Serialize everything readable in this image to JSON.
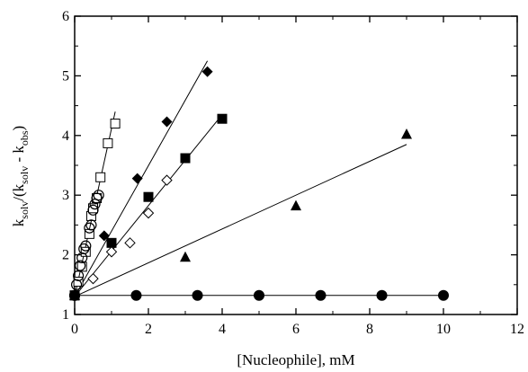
{
  "chart_data": {
    "type": "scatter",
    "title": "",
    "xlabel": "[Nucleophile], mM",
    "ylabel": {
      "base1": "k",
      "sub1": "solv",
      "middle": "/(k",
      "sub2": "solv",
      "dash": " - k",
      "sub3": "obs",
      "tail": ")"
    },
    "xlim": [
      0,
      12
    ],
    "ylim": [
      1,
      6
    ],
    "xticks": [
      0,
      2,
      4,
      6,
      8,
      10,
      12
    ],
    "yticks": [
      1,
      2,
      3,
      4,
      5,
      6
    ],
    "grid": false,
    "legend": "none",
    "series": [
      {
        "marker": "open-square",
        "points": [
          [
            0.0,
            1.32
          ],
          [
            0.1,
            1.55
          ],
          [
            0.2,
            1.8
          ],
          [
            0.3,
            2.05
          ],
          [
            0.4,
            2.35
          ],
          [
            0.45,
            2.65
          ],
          [
            0.5,
            2.78
          ],
          [
            0.6,
            2.95
          ],
          [
            0.7,
            3.3
          ],
          [
            0.9,
            3.87
          ],
          [
            1.1,
            4.2
          ]
        ],
        "fit": [
          [
            0.0,
            1.3
          ],
          [
            1.1,
            4.4
          ]
        ]
      },
      {
        "marker": "open-circle",
        "points": [
          [
            0.0,
            1.32
          ],
          [
            0.05,
            1.5
          ],
          [
            0.1,
            1.65
          ],
          [
            0.15,
            1.82
          ],
          [
            0.2,
            1.95
          ],
          [
            0.25,
            2.1
          ],
          [
            0.3,
            2.15
          ],
          [
            0.4,
            2.45
          ],
          [
            0.45,
            2.5
          ],
          [
            0.5,
            2.75
          ],
          [
            0.55,
            2.85
          ],
          [
            0.6,
            2.95
          ],
          [
            0.65,
            3.0
          ]
        ],
        "fit": null
      },
      {
        "marker": "filled-diamond",
        "points": [
          [
            0.0,
            1.32
          ],
          [
            0.8,
            2.32
          ],
          [
            1.7,
            3.28
          ],
          [
            2.5,
            4.23
          ],
          [
            3.6,
            5.07
          ]
        ],
        "fit": [
          [
            0.0,
            1.3
          ],
          [
            3.6,
            5.25
          ]
        ]
      },
      {
        "marker": "filled-square",
        "points": [
          [
            0.0,
            1.32
          ],
          [
            1.0,
            2.2
          ],
          [
            2.0,
            2.97
          ],
          [
            3.0,
            3.62
          ],
          [
            4.0,
            4.28
          ]
        ],
        "fit": [
          [
            0.0,
            1.3
          ],
          [
            4.0,
            4.35
          ]
        ]
      },
      {
        "marker": "open-diamond",
        "points": [
          [
            0.0,
            1.32
          ],
          [
            0.5,
            1.6
          ],
          [
            1.0,
            2.05
          ],
          [
            1.5,
            2.2
          ],
          [
            2.0,
            2.7
          ],
          [
            2.5,
            3.25
          ]
        ],
        "fit": null
      },
      {
        "marker": "filled-triangle",
        "points": [
          [
            0.0,
            1.32
          ],
          [
            3.0,
            1.96
          ],
          [
            6.0,
            2.82
          ],
          [
            9.0,
            4.02
          ]
        ],
        "fit": [
          [
            0.0,
            1.3
          ],
          [
            9.0,
            3.85
          ]
        ]
      },
      {
        "marker": "filled-circle",
        "points": [
          [
            0.0,
            1.32
          ],
          [
            1.67,
            1.32
          ],
          [
            3.33,
            1.32
          ],
          [
            5.0,
            1.32
          ],
          [
            6.67,
            1.32
          ],
          [
            8.33,
            1.32
          ],
          [
            10.0,
            1.32
          ]
        ],
        "fit": [
          [
            0.0,
            1.32
          ],
          [
            10.0,
            1.32
          ]
        ]
      }
    ]
  }
}
